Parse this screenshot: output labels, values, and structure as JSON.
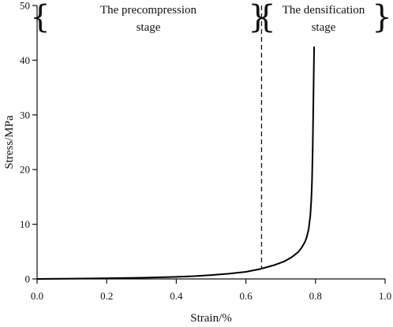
{
  "chart_data": {
    "type": "line",
    "xlabel": "Strain/%",
    "ylabel": "Stress/MPa",
    "xlim": [
      0.0,
      1.0
    ],
    "ylim": [
      0,
      50
    ],
    "x_ticks": [
      "0.0",
      "0.2",
      "0.4",
      "0.6",
      "0.8",
      "1.0"
    ],
    "y_ticks": [
      "0",
      "10",
      "20",
      "30",
      "40",
      "50"
    ],
    "grid": false,
    "divider_x": 0.645,
    "stages": [
      {
        "line1": "The precompression",
        "line2": "stage"
      },
      {
        "line1": "The densification",
        "line2": "stage"
      }
    ],
    "series": [
      {
        "x": [
          0.0,
          0.1,
          0.2,
          0.3,
          0.4,
          0.45,
          0.5,
          0.55,
          0.6,
          0.64,
          0.68,
          0.71,
          0.73,
          0.75,
          0.76,
          0.77,
          0.775,
          0.78,
          0.785,
          0.788,
          0.79,
          0.792,
          0.794,
          0.796
        ],
        "y": [
          0.0,
          0.05,
          0.12,
          0.22,
          0.38,
          0.5,
          0.7,
          0.95,
          1.3,
          1.8,
          2.5,
          3.2,
          3.9,
          4.9,
          5.7,
          6.8,
          7.7,
          9.0,
          11.5,
          14.5,
          18.0,
          24.0,
          33.0,
          42.5
        ]
      }
    ]
  }
}
